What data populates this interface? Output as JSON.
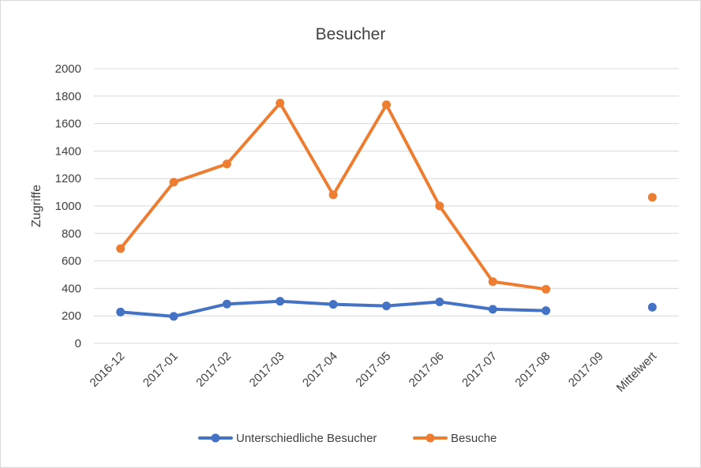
{
  "chart_data": {
    "type": "line",
    "title": "Besucher",
    "xlabel": "",
    "ylabel": "Zugriffe",
    "categories": [
      "2016-12",
      "2017-01",
      "2017-02",
      "2017-03",
      "2017-04",
      "2017-05",
      "2017-06",
      "2017-07",
      "2017-08",
      "2017-09",
      "Mittelwert"
    ],
    "ylim": [
      0,
      2000
    ],
    "yticks": [
      0,
      200,
      400,
      600,
      800,
      1000,
      1200,
      1400,
      1600,
      1800,
      2000
    ],
    "grid": true,
    "legend_position": "bottom",
    "series": [
      {
        "name": "Unterschiedliche Besucher",
        "color": "#4472c4",
        "values": [
          228,
          196,
          286,
          306,
          284,
          272,
          302,
          248,
          238,
          null,
          263
        ]
      },
      {
        "name": "Besuche",
        "color": "#ed7d31",
        "values": [
          690,
          1173,
          1306,
          1749,
          1081,
          1737,
          1000,
          449,
          394,
          null,
          1063
        ]
      }
    ]
  }
}
